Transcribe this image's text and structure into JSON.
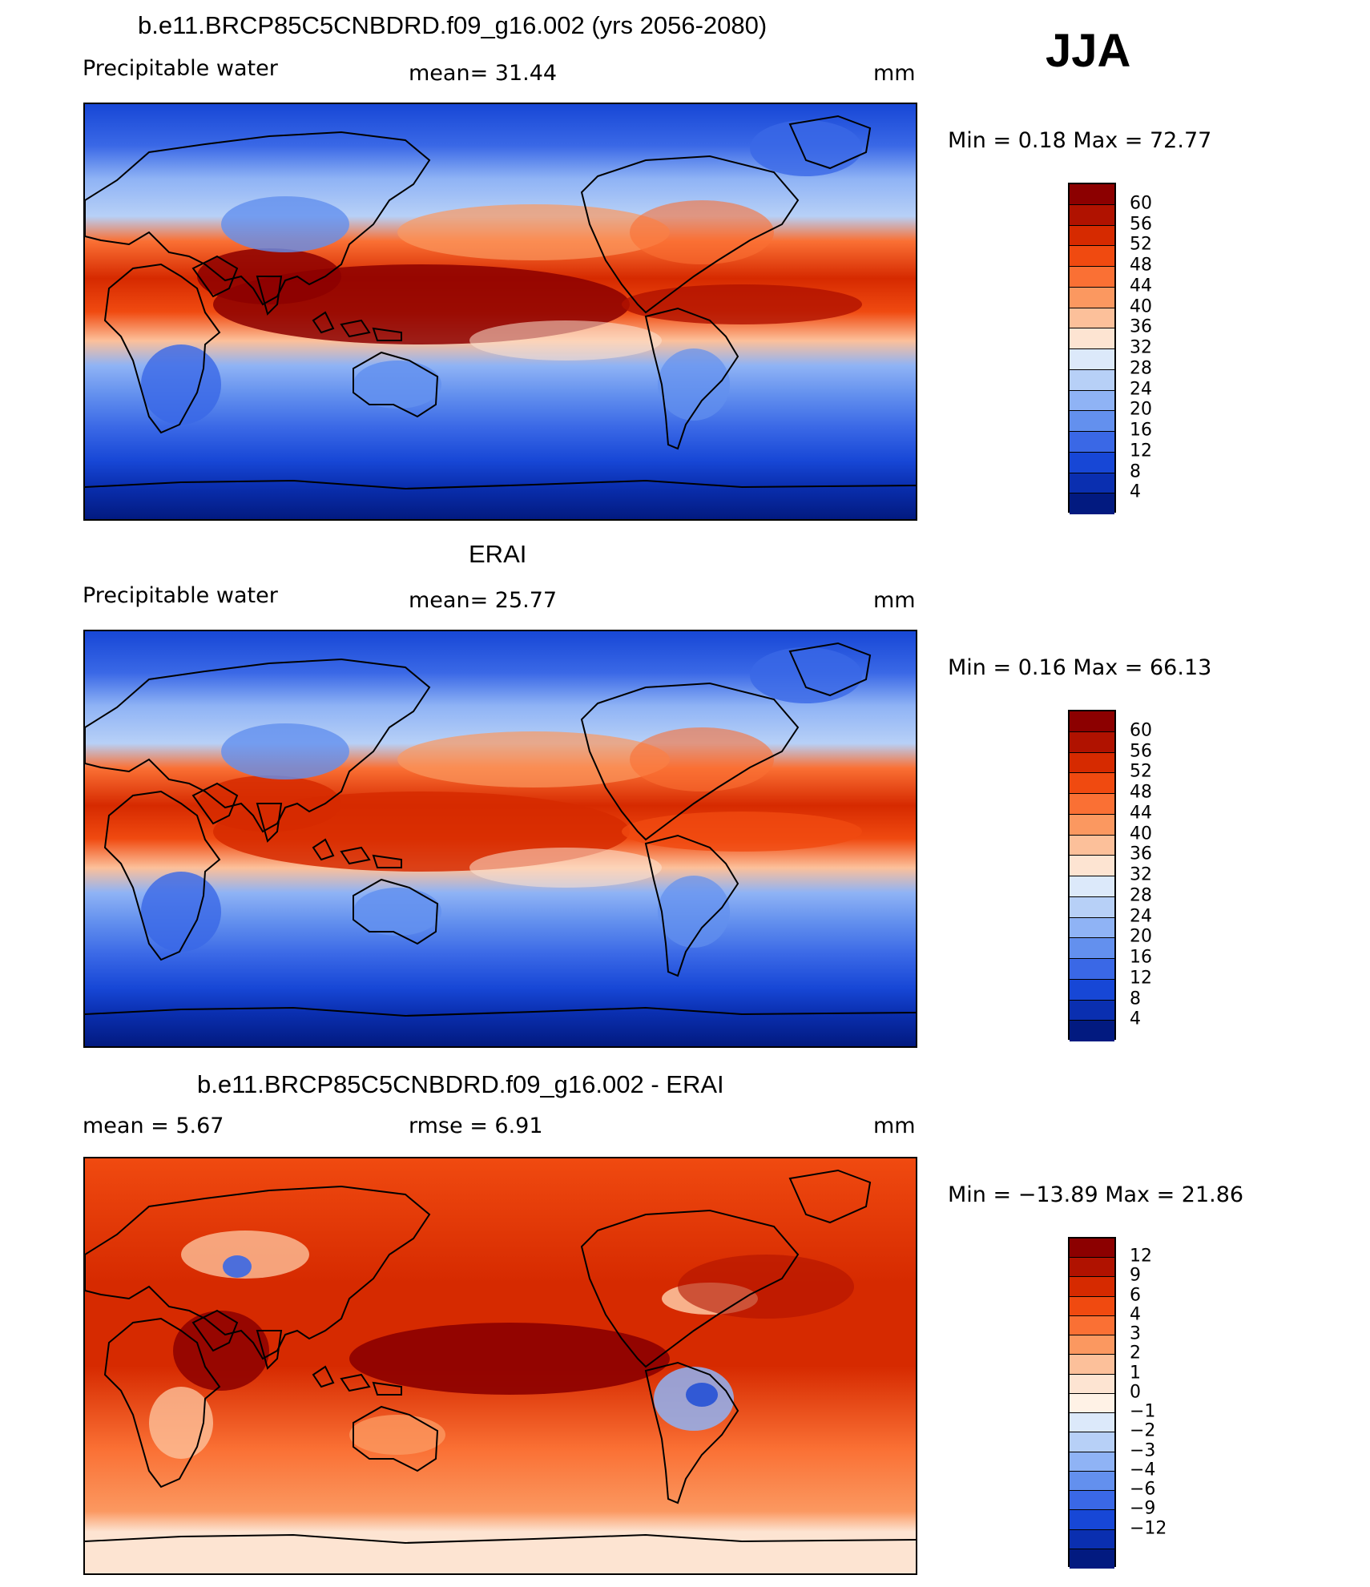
{
  "season": "JJA",
  "panels": [
    {
      "title": "b.e11.BRCP85C5CNBDRD.f09_g16.002 (yrs 2056-2080)",
      "left_label": "Precipitable water",
      "mid_label": "mean=   31.44",
      "units": "mm",
      "minmax": "Min =    0.18  Max =   72.77",
      "colorbar_labels": [
        "60",
        "56",
        "52",
        "48",
        "44",
        "40",
        "36",
        "32",
        "28",
        "24",
        "20",
        "16",
        "12",
        "8",
        "4"
      ],
      "map_type": "model"
    },
    {
      "title": "ERAI",
      "left_label": "Precipitable water",
      "mid_label": "mean=   25.77",
      "units": "mm",
      "minmax": "Min =    0.16  Max =   66.13",
      "colorbar_labels": [
        "60",
        "56",
        "52",
        "48",
        "44",
        "40",
        "36",
        "32",
        "28",
        "24",
        "20",
        "16",
        "12",
        "8",
        "4"
      ],
      "map_type": "obs"
    },
    {
      "title": "b.e11.BRCP85C5CNBDRD.f09_g16.002 - ERAI",
      "left_label": "mean =     5.67",
      "mid_label": "rmse =     6.91",
      "units": "mm",
      "minmax": "Min = −13.89  Max =   21.86",
      "colorbar_labels": [
        "12",
        "9",
        "6",
        "4",
        "3",
        "2",
        "1",
        "0",
        "−1",
        "−2",
        "−3",
        "−4",
        "−6",
        "−9",
        "−12"
      ],
      "map_type": "diff"
    }
  ],
  "colors": {
    "abs_scale": [
      "#8c0000",
      "#b01200",
      "#d62a00",
      "#f04a10",
      "#fa7034",
      "#fb9860",
      "#fcc09a",
      "#fde4d2",
      "#dce9fa",
      "#b7d0f7",
      "#8fb3f5",
      "#6390ee",
      "#3a68e6",
      "#1747d6",
      "#0a2fb0",
      "#021a80"
    ],
    "diff_scale": [
      "#8c0000",
      "#b01200",
      "#d62a00",
      "#f04a10",
      "#fa7034",
      "#fb9860",
      "#fcc09a",
      "#fde4d2",
      "#fff2e6",
      "#dce9fa",
      "#b7d0f7",
      "#8fb3f5",
      "#6390ee",
      "#3a68e6",
      "#1747d6",
      "#0a2fb0",
      "#021a80"
    ]
  }
}
